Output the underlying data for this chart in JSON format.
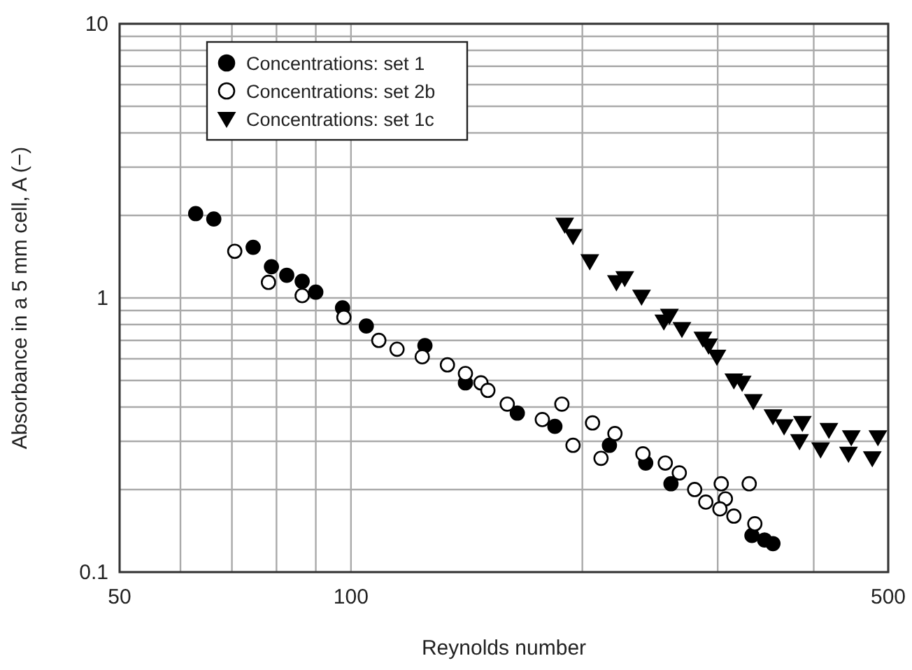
{
  "chart_data": {
    "type": "scatter",
    "xlabel": "Reynolds number",
    "ylabel": "Absorbance in a 5 mm cell, A (−)",
    "log": "xy",
    "grid": true,
    "legend": "top left",
    "xlim": [
      50,
      500
    ],
    "xticks": [
      50,
      {
        "value": 60,
        "label": null
      },
      {
        "value": 70,
        "label": null
      },
      {
        "value": 80,
        "label": null
      },
      {
        "value": 90,
        "label": null
      },
      100,
      {
        "value": 200,
        "label": null
      },
      {
        "value": 300,
        "label": null
      },
      {
        "value": 400,
        "label": null
      },
      500
    ],
    "ylim": [
      0.1,
      10
    ],
    "yticks": [
      {
        "value": 0.1,
        "label": "0.1"
      },
      {
        "value": 0.2,
        "label": null
      },
      {
        "value": 0.3,
        "label": null
      },
      {
        "value": 0.4,
        "label": null
      },
      {
        "value": 0.5,
        "label": null
      },
      {
        "value": 0.6,
        "label": null
      },
      {
        "value": 0.7,
        "label": null
      },
      {
        "value": 0.8,
        "label": null
      },
      {
        "value": 0.9,
        "label": null
      },
      1,
      {
        "value": 2,
        "label": null
      },
      {
        "value": 3,
        "label": null
      },
      {
        "value": 4,
        "label": null
      },
      {
        "value": 5,
        "label": null
      },
      {
        "value": 6,
        "label": null
      },
      {
        "value": 7,
        "label": null
      },
      {
        "value": 8,
        "label": null
      },
      {
        "value": 9,
        "label": null
      },
      10
    ],
    "series": [
      {
        "name": "Concentrations: set 1",
        "color": "#000000",
        "marker": "circle",
        "x": [
          62.8,
          66.3,
          74.6,
          78.8,
          82.5,
          86.4,
          90,
          97.5,
          104.7,
          124.8,
          140.9,
          164.6,
          184.2,
          216.9,
          241.8,
          260.8,
          332.4,
          345.2,
          354
        ],
        "values": [
          2.03,
          1.94,
          1.53,
          1.3,
          1.21,
          1.15,
          1.05,
          0.92,
          0.79,
          0.67,
          0.49,
          0.38,
          0.34,
          0.29,
          0.25,
          0.21,
          0.136,
          0.131,
          0.127
        ]
      },
      {
        "name": "Concentrations: set 2b",
        "color": "#ffffff",
        "marker": "circle",
        "x": [
          70.6,
          78.1,
          86.4,
          97.9,
          108.7,
          114.8,
          123.8,
          133.5,
          140.9,
          147.6,
          150.7,
          159.7,
          177.4,
          188.1,
          194.5,
          206.2,
          211.5,
          220.5,
          239.8,
          256.4,
          267.4,
          280,
          289.5,
          303.2,
          307,
          302,
          314.9,
          329.7,
          335.3
        ],
        "values": [
          1.48,
          1.14,
          1.02,
          0.85,
          0.7,
          0.65,
          0.61,
          0.57,
          0.53,
          0.49,
          0.46,
          0.41,
          0.36,
          0.41,
          0.29,
          0.35,
          0.26,
          0.32,
          0.27,
          0.25,
          0.23,
          0.2,
          0.18,
          0.21,
          0.185,
          0.17,
          0.16,
          0.21,
          0.15
        ]
      },
      {
        "name": "Concentrations: set 1c",
        "color": "#000000",
        "marker": "triangle",
        "x": [
          189.7,
          194.5,
          204.5,
          221.5,
          227.1,
          238.8,
          255.3,
          259.6,
          269.5,
          287,
          291.9,
          299.3,
          314.9,
          322.8,
          333.8,
          354,
          366,
          386.6,
          383.3,
          408.3,
          418.6,
          443.9,
          447.6,
          476.7,
          484.8
        ],
        "values": [
          1.85,
          1.68,
          1.36,
          1.14,
          1.18,
          1.01,
          0.82,
          0.86,
          0.77,
          0.71,
          0.67,
          0.61,
          0.5,
          0.49,
          0.42,
          0.37,
          0.34,
          0.35,
          0.3,
          0.28,
          0.33,
          0.27,
          0.31,
          0.26,
          0.31
        ]
      }
    ]
  }
}
